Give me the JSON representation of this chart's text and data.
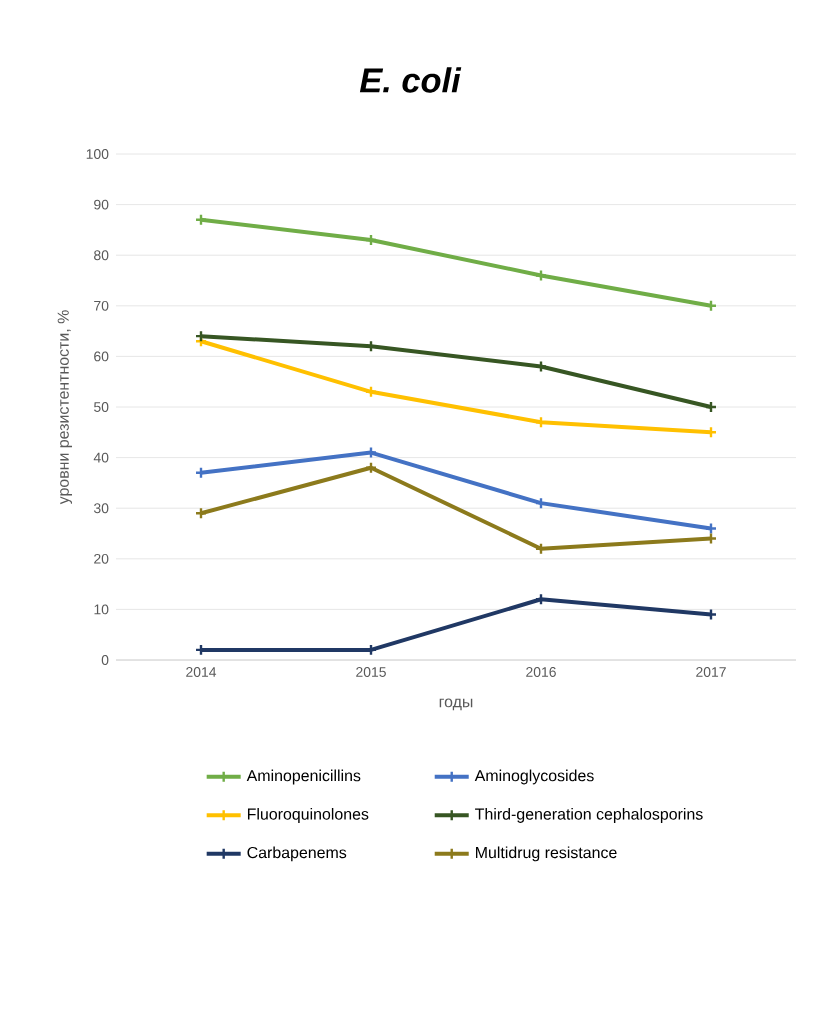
{
  "chart_data": {
    "type": "line",
    "title": "E. coli",
    "xlabel": "годы",
    "ylabel": "уровни резистентности, %",
    "categories": [
      "2014",
      "2015",
      "2016",
      "2017"
    ],
    "series": [
      {
        "name": "Aminopenicillins",
        "color": "#70ad47",
        "values": [
          87,
          83,
          76,
          70
        ]
      },
      {
        "name": "Aminoglycosides",
        "color": "#4472c4",
        "values": [
          37,
          41,
          31,
          26
        ]
      },
      {
        "name": "Fluoroquinolones",
        "color": "#ffc000",
        "values": [
          63,
          53,
          47,
          45
        ]
      },
      {
        "name": "Third-generation cephalosporins",
        "color": "#375623",
        "values": [
          64,
          62,
          58,
          50
        ]
      },
      {
        "name": "Carbapenems",
        "color": "#203864",
        "values": [
          2,
          2,
          12,
          9
        ]
      },
      {
        "name": "Multidrug resistance",
        "color": "#8c7a1c",
        "values": [
          29,
          38,
          22,
          24
        ]
      }
    ],
    "ylim": [
      0,
      100
    ],
    "yticks": [
      0,
      10,
      20,
      30,
      40,
      50,
      60,
      70,
      80,
      90,
      100
    ],
    "grid": "y",
    "legend": "bottom",
    "marker": "cross",
    "line_style": "solid"
  }
}
